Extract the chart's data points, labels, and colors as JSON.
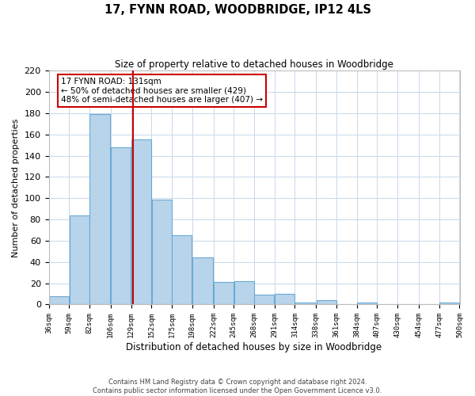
{
  "title": "17, FYNN ROAD, WOODBRIDGE, IP12 4LS",
  "subtitle": "Size of property relative to detached houses in Woodbridge",
  "xlabel": "Distribution of detached houses by size in Woodbridge",
  "ylabel": "Number of detached properties",
  "bar_left_edges": [
    36,
    59,
    82,
    106,
    129,
    152,
    175,
    198,
    222,
    245,
    268,
    291,
    314,
    338,
    361,
    384,
    407,
    430,
    454,
    477
  ],
  "bar_widths": [
    23,
    23,
    24,
    23,
    23,
    23,
    23,
    24,
    23,
    23,
    23,
    23,
    23,
    23,
    23,
    23,
    23,
    24,
    23,
    23
  ],
  "bar_heights": [
    8,
    84,
    179,
    148,
    155,
    99,
    65,
    44,
    21,
    22,
    9,
    10,
    2,
    4,
    0,
    2,
    0,
    0,
    0,
    2
  ],
  "bar_color": "#b8d4ea",
  "bar_edgecolor": "#6aaad4",
  "tick_labels": [
    "36sqm",
    "59sqm",
    "82sqm",
    "106sqm",
    "129sqm",
    "152sqm",
    "175sqm",
    "198sqm",
    "222sqm",
    "245sqm",
    "268sqm",
    "291sqm",
    "314sqm",
    "338sqm",
    "361sqm",
    "384sqm",
    "407sqm",
    "430sqm",
    "454sqm",
    "477sqm",
    "500sqm"
  ],
  "tick_positions": [
    36,
    59,
    82,
    106,
    129,
    152,
    175,
    198,
    222,
    245,
    268,
    291,
    314,
    338,
    361,
    384,
    407,
    430,
    454,
    477,
    500
  ],
  "ylim": [
    0,
    220
  ],
  "yticks": [
    0,
    20,
    40,
    60,
    80,
    100,
    120,
    140,
    160,
    180,
    200,
    220
  ],
  "vline_x": 131,
  "vline_color": "#cc0000",
  "annotation_text": "17 FYNN ROAD: 131sqm\n← 50% of detached houses are smaller (429)\n48% of semi-detached houses are larger (407) →",
  "footer_line1": "Contains HM Land Registry data © Crown copyright and database right 2024.",
  "footer_line2": "Contains public sector information licensed under the Open Government Licence v3.0.",
  "background_color": "#ffffff",
  "grid_color": "#c8d8ec"
}
